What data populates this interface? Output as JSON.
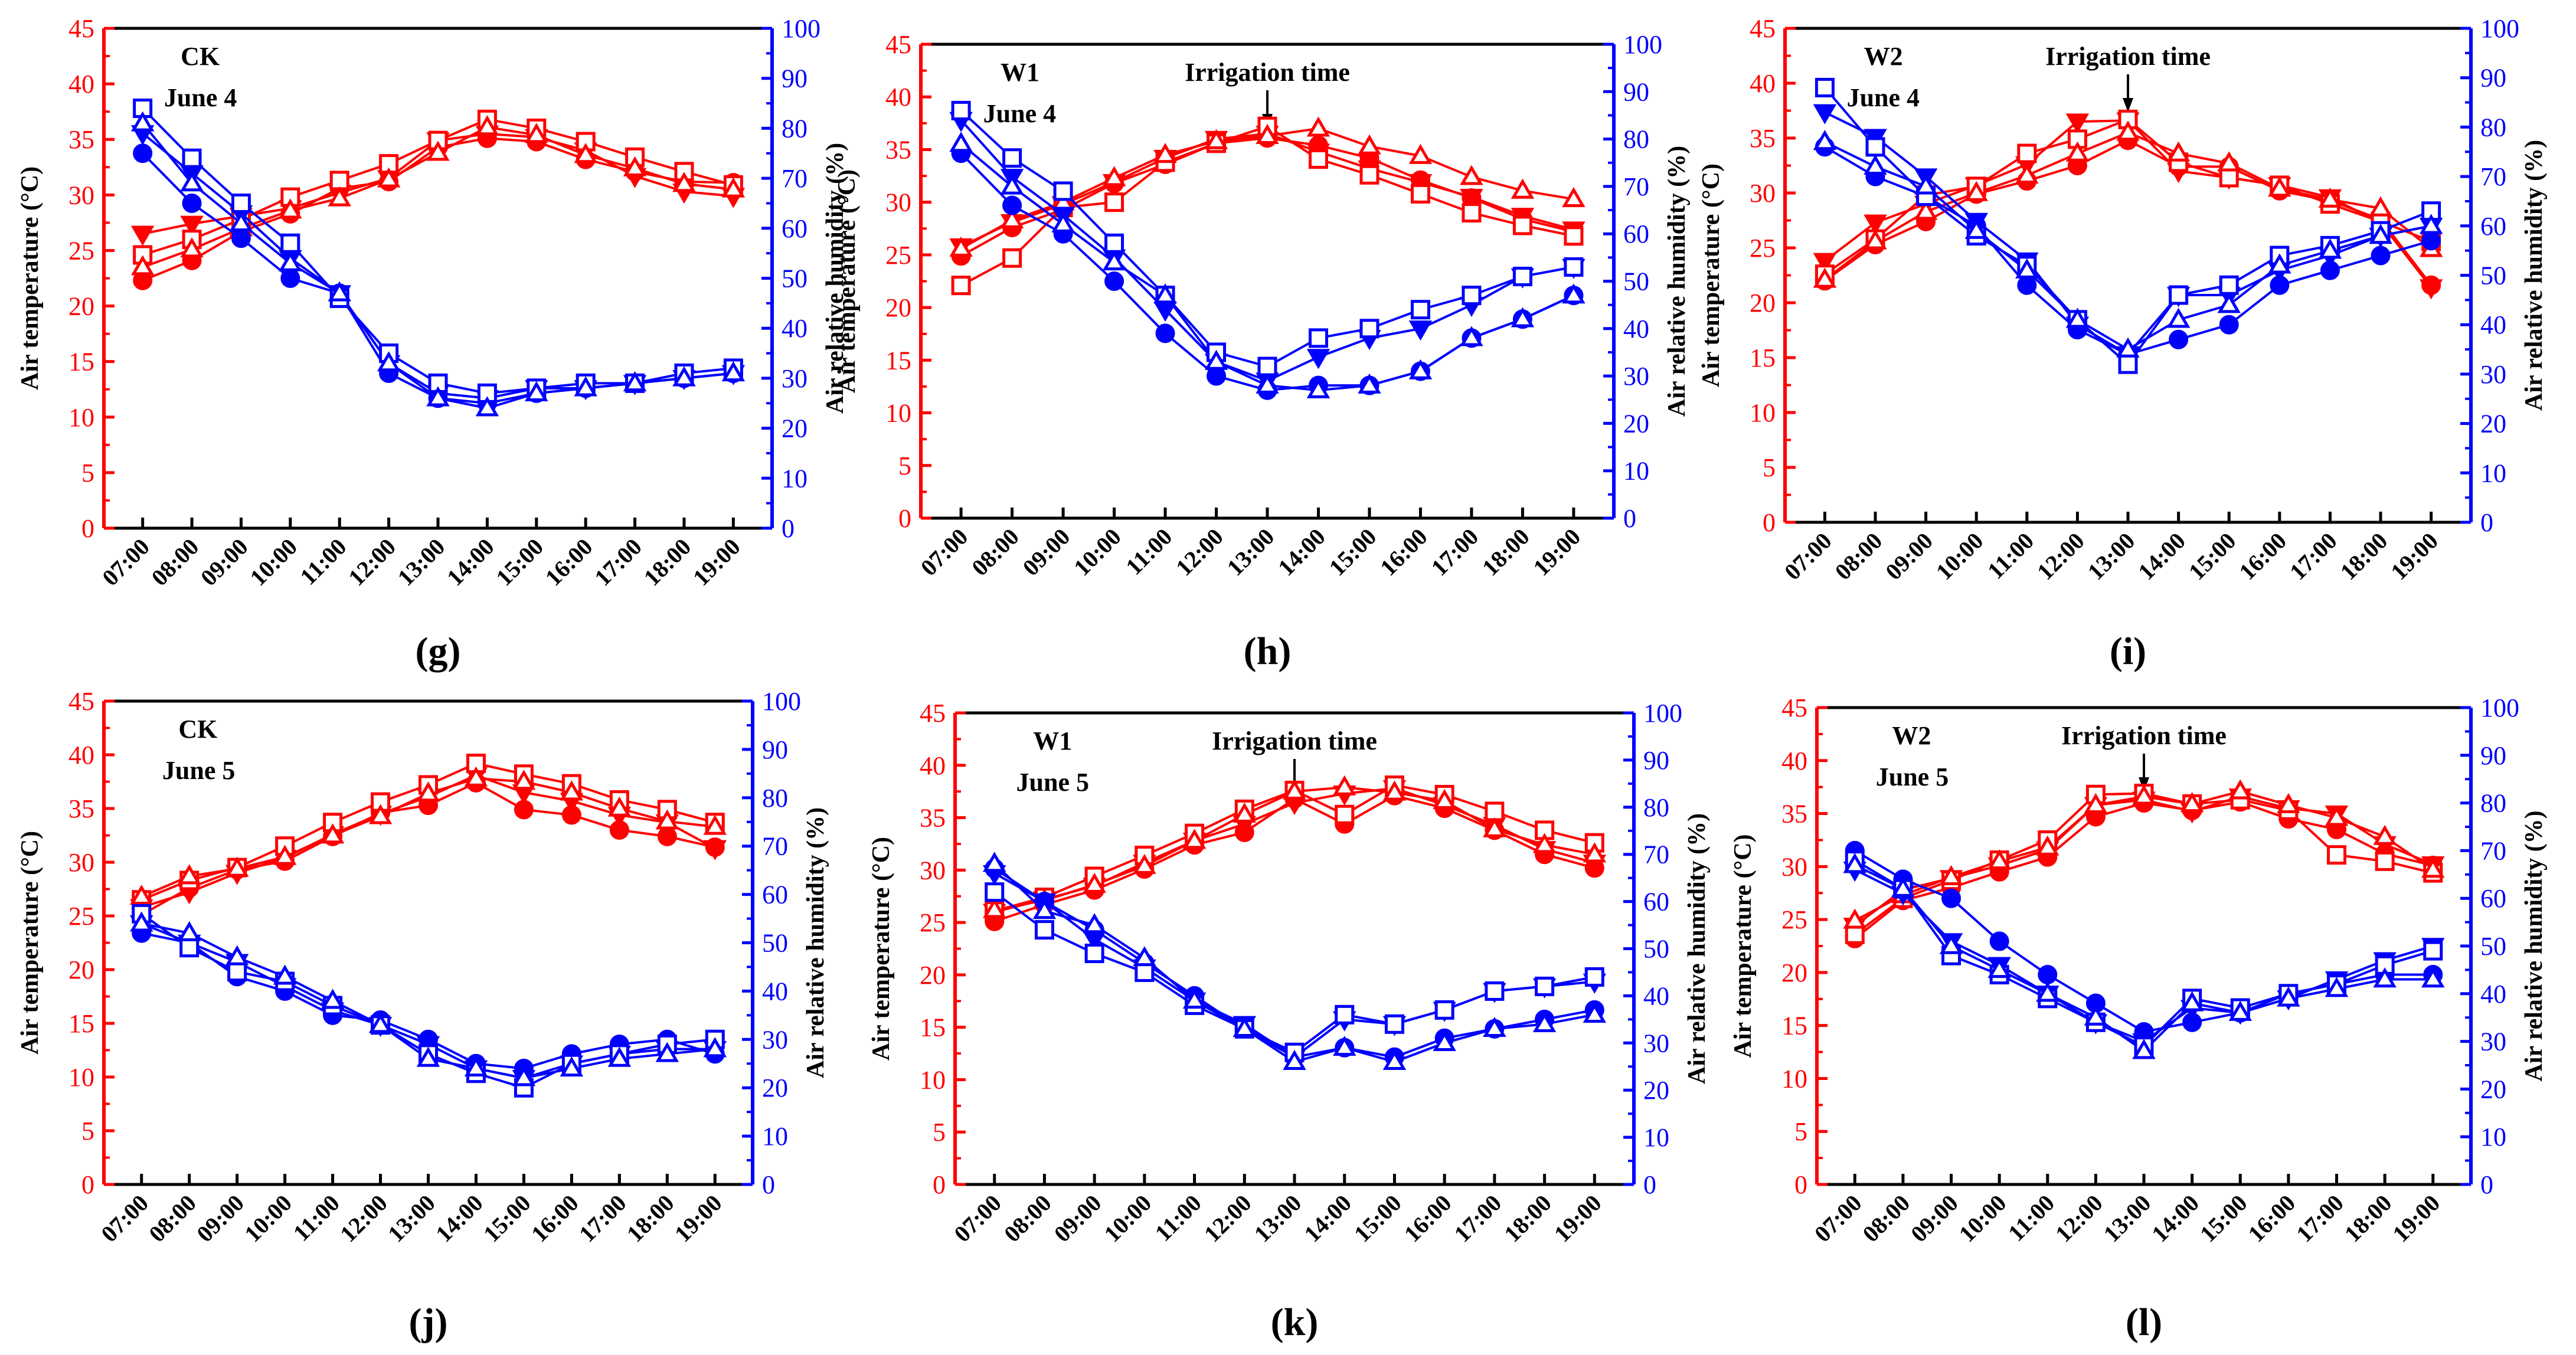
{
  "figure": {
    "colors": {
      "temperature": "#ff0000",
      "humidity": "#0000ff",
      "text": "#000000"
    }
  },
  "chart_data": [
    {
      "panel": "(g)",
      "type": "line",
      "site": "CK",
      "date": "June 4",
      "annotation": "",
      "x": [
        "07:00",
        "08:00",
        "09:00",
        "10:00",
        "11:00",
        "12:00",
        "13:00",
        "14:00",
        "15:00",
        "16:00",
        "17:00",
        "18:00",
        "19:00"
      ],
      "xlabel": "",
      "ylabel": "Air temperature (°C)",
      "y2label": "Air relative humidity (%)",
      "ylim": [
        0,
        45
      ],
      "y2lim": [
        0,
        100
      ],
      "temperature_series": [
        {
          "marker": "circle-filled",
          "values": [
            22.3,
            24.1,
            26.7,
            28.3,
            30.6,
            31.2,
            34.3,
            35.1,
            34.8,
            33.2,
            32.1,
            31.2,
            31.1
          ]
        },
        {
          "marker": "triangle-down-filled",
          "values": [
            26.5,
            27.4,
            28.1,
            28.8,
            30.2,
            31.5,
            34.9,
            35.5,
            35.2,
            34.0,
            31.7,
            30.3,
            29.9
          ]
        },
        {
          "marker": "square-open",
          "values": [
            24.6,
            26.0,
            27.8,
            29.8,
            31.3,
            32.8,
            34.9,
            36.8,
            36.0,
            34.8,
            33.4,
            32.1,
            30.9
          ]
        },
        {
          "marker": "triangle-up-open",
          "values": [
            23.5,
            25.1,
            27.0,
            28.6,
            29.7,
            31.4,
            33.8,
            36.1,
            35.4,
            33.6,
            32.4,
            31.0,
            30.5
          ]
        }
      ],
      "humidity_series": [
        {
          "marker": "circle-filled",
          "values": [
            75,
            65,
            58,
            50,
            47,
            31,
            26,
            25,
            27,
            28,
            29,
            30,
            31
          ]
        },
        {
          "marker": "triangle-down-filled",
          "values": [
            79,
            71,
            63,
            54,
            47,
            33,
            27,
            26,
            28,
            28,
            29,
            30,
            31
          ]
        },
        {
          "marker": "square-open",
          "values": [
            84,
            74,
            65,
            57,
            46,
            35,
            29,
            27,
            28,
            29,
            29,
            31,
            32
          ]
        },
        {
          "marker": "triangle-up-open",
          "values": [
            81,
            69,
            61,
            53,
            47,
            33,
            26,
            24,
            27,
            28,
            29,
            30,
            31
          ]
        }
      ]
    },
    {
      "panel": "(h)",
      "type": "line",
      "site": "W1",
      "date": "June 4",
      "annotation": "Irrigation time",
      "x": [
        "07:00",
        "08:00",
        "09:00",
        "10:00",
        "11:00",
        "12:00",
        "13:00",
        "14:00",
        "15:00",
        "16:00",
        "17:00",
        "18:00",
        "19:00"
      ],
      "xlabel": "",
      "ylabel": "Air temperature (°C)",
      "y2label": "Air relative humidity (%)",
      "ylim": [
        0,
        45
      ],
      "y2lim": [
        0,
        100
      ],
      "temperature_series": [
        {
          "marker": "circle-filled",
          "values": [
            24.9,
            27.6,
            29.3,
            31.8,
            33.6,
            35.6,
            36.1,
            35.4,
            34.2,
            32.1,
            30.4,
            28.4,
            27.2
          ]
        },
        {
          "marker": "triangle-down-filled",
          "values": [
            25.8,
            28.1,
            29.8,
            31.9,
            34.2,
            36.0,
            36.5,
            34.8,
            33.2,
            31.9,
            30.5,
            28.7,
            27.4
          ]
        },
        {
          "marker": "square-open",
          "values": [
            22.1,
            24.7,
            29.5,
            30.0,
            33.8,
            35.6,
            37.2,
            34.1,
            32.6,
            30.8,
            29.0,
            27.8,
            26.8
          ]
        },
        {
          "marker": "triangle-up-open",
          "values": [
            25.6,
            28.3,
            30.0,
            32.3,
            34.5,
            35.8,
            36.3,
            37.0,
            35.3,
            34.4,
            32.4,
            31.1,
            30.3
          ]
        }
      ],
      "humidity_series": [
        {
          "marker": "circle-filled",
          "values": [
            77,
            66,
            60,
            50,
            39,
            30,
            27,
            28,
            28,
            31,
            38,
            42,
            47
          ]
        },
        {
          "marker": "triangle-down-filled",
          "values": [
            84,
            72,
            64,
            55,
            44,
            33,
            29,
            34,
            38,
            40,
            45,
            51,
            53
          ]
        },
        {
          "marker": "square-open",
          "values": [
            86,
            76,
            69,
            58,
            47,
            35,
            32,
            38,
            40,
            44,
            47,
            51,
            53
          ]
        },
        {
          "marker": "triangle-up-open",
          "values": [
            79,
            70,
            62,
            54,
            47,
            33,
            28,
            27,
            28,
            31,
            38,
            42,
            47
          ]
        }
      ]
    },
    {
      "panel": "(i)",
      "type": "line",
      "site": "W2",
      "date": "June 4",
      "annotation": "Irrigation time",
      "x": [
        "07:00",
        "08:00",
        "09:00",
        "10:00",
        "11:00",
        "12:00",
        "13:00",
        "14:00",
        "15:00",
        "16:00",
        "17:00",
        "18:00",
        "19:00"
      ],
      "xlabel": "",
      "ylabel": "Air temperature (°C)",
      "y2label": "Air relative humidity (%)",
      "ylim": [
        0,
        45
      ],
      "y2lim": [
        0,
        100
      ],
      "temperature_series": [
        {
          "marker": "circle-filled",
          "values": [
            22.0,
            25.3,
            27.4,
            29.9,
            31.1,
            32.5,
            34.8,
            32.4,
            32.4,
            30.2,
            29.3,
            27.6,
            21.6
          ]
        },
        {
          "marker": "triangle-down-filled",
          "values": [
            23.8,
            27.3,
            29.0,
            30.7,
            32.6,
            36.5,
            36.6,
            32.0,
            31.4,
            30.7,
            29.6,
            27.3,
            21.4
          ]
        },
        {
          "marker": "square-open",
          "values": [
            22.6,
            25.8,
            29.8,
            30.6,
            33.6,
            34.9,
            36.7,
            32.8,
            31.4,
            30.7,
            29.0,
            27.4,
            25.6
          ]
        },
        {
          "marker": "triangle-up-open",
          "values": [
            22.1,
            25.6,
            28.3,
            30.0,
            31.6,
            33.6,
            35.5,
            33.6,
            32.7,
            30.4,
            29.4,
            28.6,
            24.9
          ]
        }
      ],
      "humidity_series": [
        {
          "marker": "circle-filled",
          "values": [
            76,
            70,
            66,
            60,
            48,
            39,
            34,
            37,
            40,
            48,
            51,
            54,
            57
          ]
        },
        {
          "marker": "triangle-down-filled",
          "values": [
            83,
            78,
            70,
            61,
            53,
            40,
            34,
            46,
            46,
            51,
            54,
            58,
            60
          ]
        },
        {
          "marker": "square-open",
          "values": [
            88,
            76,
            66,
            58,
            52,
            41,
            32,
            46,
            48,
            54,
            56,
            59,
            63
          ]
        },
        {
          "marker": "triangle-up-open",
          "values": [
            77,
            72,
            68,
            59,
            51,
            41,
            35,
            41,
            44,
            52,
            55,
            58,
            60
          ]
        }
      ]
    },
    {
      "panel": "(j)",
      "type": "line",
      "site": "CK",
      "date": "June 5",
      "annotation": "",
      "x": [
        "07:00",
        "08:00",
        "09:00",
        "10:00",
        "11:00",
        "12:00",
        "13:00",
        "14:00",
        "15:00",
        "16:00",
        "17:00",
        "18:00",
        "19:00"
      ],
      "xlabel": "",
      "ylabel": "Air temperature (°C)",
      "y2label": "Air relative humidity (%)",
      "ylim": [
        0,
        45
      ],
      "y2lim": [
        0,
        100
      ],
      "temperature_series": [
        {
          "marker": "circle-filled",
          "values": [
            25.1,
            27.6,
            29.3,
            30.1,
            32.4,
            34.6,
            35.3,
            37.4,
            34.9,
            34.4,
            33.0,
            32.4,
            31.4
          ]
        },
        {
          "marker": "triangle-down-filled",
          "values": [
            25.8,
            27.2,
            29.0,
            30.4,
            32.6,
            34.5,
            36.1,
            38.1,
            36.5,
            35.7,
            34.4,
            33.7,
            31.3
          ]
        },
        {
          "marker": "square-open",
          "values": [
            26.5,
            28.3,
            29.5,
            31.5,
            33.7,
            35.6,
            37.2,
            39.2,
            38.2,
            37.3,
            35.8,
            34.9,
            33.7
          ]
        },
        {
          "marker": "triangle-up-open",
          "values": [
            26.8,
            28.7,
            29.4,
            30.5,
            32.5,
            34.3,
            36.4,
            37.8,
            37.5,
            36.5,
            35.0,
            33.8,
            33.3
          ]
        }
      ],
      "humidity_series": [
        {
          "marker": "circle-filled",
          "values": [
            52,
            50,
            43,
            40,
            35,
            34,
            30,
            25,
            24,
            27,
            29,
            30,
            27
          ]
        },
        {
          "marker": "triangle-down-filled",
          "values": [
            54,
            50,
            46,
            41,
            36,
            33,
            29,
            24,
            22,
            25,
            27,
            28,
            28
          ]
        },
        {
          "marker": "square-open",
          "values": [
            56,
            49,
            44,
            42,
            37,
            33,
            27,
            23,
            20,
            25,
            27,
            29,
            30
          ]
        },
        {
          "marker": "triangle-up-open",
          "values": [
            54,
            52,
            47,
            43,
            38,
            33,
            26,
            24,
            22,
            24,
            26,
            27,
            28
          ]
        }
      ]
    },
    {
      "panel": "(k)",
      "type": "line",
      "site": "W1",
      "date": "June 5",
      "annotation": "Irrigation time",
      "x": [
        "07:00",
        "08:00",
        "09:00",
        "10:00",
        "11:00",
        "12:00",
        "13:00",
        "14:00",
        "15:00",
        "16:00",
        "17:00",
        "18:00",
        "19:00"
      ],
      "xlabel": "",
      "ylabel": "Air temperature (°C)",
      "y2label": "Air relative humidity (%)",
      "ylim": [
        0,
        45
      ],
      "y2lim": [
        0,
        100
      ],
      "temperature_series": [
        {
          "marker": "circle-filled",
          "values": [
            25.1,
            26.7,
            28.1,
            30.1,
            32.4,
            33.6,
            36.8,
            34.4,
            37.1,
            35.9,
            33.8,
            31.5,
            30.2
          ]
        },
        {
          "marker": "triangle-down-filled",
          "values": [
            26.0,
            27.2,
            28.5,
            30.7,
            32.8,
            34.4,
            36.4,
            37.3,
            37.8,
            36.2,
            34.3,
            32.0,
            30.7
          ]
        },
        {
          "marker": "square-open",
          "values": [
            26.1,
            27.4,
            29.4,
            31.4,
            33.5,
            35.8,
            37.6,
            35.3,
            38.1,
            37.2,
            35.6,
            33.8,
            32.6
          ]
        },
        {
          "marker": "triangle-up-open",
          "values": [
            26.2,
            27.1,
            28.6,
            30.4,
            32.8,
            35.3,
            37.5,
            37.9,
            37.4,
            36.6,
            33.9,
            32.4,
            31.5
          ]
        }
      ],
      "humidity_series": [
        {
          "marker": "circle-filled",
          "values": [
            67,
            60,
            54,
            47,
            40,
            33,
            27,
            29,
            27,
            31,
            33,
            35,
            37
          ]
        },
        {
          "marker": "triangle-down-filled",
          "values": [
            66,
            60,
            52,
            46,
            39,
            34,
            27,
            35,
            34,
            37,
            41,
            42,
            43
          ]
        },
        {
          "marker": "square-open",
          "values": [
            62,
            54,
            49,
            45,
            38,
            33,
            28,
            36,
            34,
            37,
            41,
            42,
            44
          ]
        },
        {
          "marker": "triangle-up-open",
          "values": [
            68,
            58,
            55,
            48,
            39,
            33,
            26,
            29,
            26,
            30,
            33,
            34,
            36
          ]
        }
      ]
    },
    {
      "panel": "(l)",
      "type": "line",
      "site": "W2",
      "date": "June 5",
      "annotation": "Irrigation time",
      "x": [
        "07:00",
        "08:00",
        "09:00",
        "10:00",
        "11:00",
        "12:00",
        "13:00",
        "14:00",
        "15:00",
        "16:00",
        "17:00",
        "18:00",
        "19:00"
      ],
      "xlabel": "",
      "ylabel": "Air temperature (°C)",
      "y2label": "Air relative humidity (%)",
      "ylim": [
        0,
        45
      ],
      "y2lim": [
        0,
        100
      ],
      "temperature_series": [
        {
          "marker": "circle-filled",
          "values": [
            23.2,
            26.8,
            28.0,
            29.5,
            30.9,
            34.7,
            36.0,
            35.3,
            36.1,
            34.5,
            33.5,
            31.2,
            30.1
          ]
        },
        {
          "marker": "triangle-down-filled",
          "values": [
            24.4,
            27.8,
            28.9,
            30.1,
            31.6,
            35.8,
            36.3,
            35.2,
            36.6,
            35.5,
            35.0,
            32.1,
            30.2
          ]
        },
        {
          "marker": "square-open",
          "values": [
            23.6,
            27.0,
            28.7,
            30.6,
            32.5,
            36.8,
            36.9,
            35.9,
            36.3,
            35.3,
            31.1,
            30.5,
            29.4
          ]
        },
        {
          "marker": "triangle-up-open",
          "values": [
            24.9,
            27.3,
            29.0,
            30.5,
            31.8,
            35.8,
            36.6,
            35.9,
            37.1,
            35.8,
            34.6,
            32.8,
            29.7
          ]
        }
      ],
      "humidity_series": [
        {
          "marker": "circle-filled",
          "values": [
            70,
            64,
            60,
            51,
            44,
            38,
            32,
            34,
            36,
            40,
            42,
            44,
            44
          ]
        },
        {
          "marker": "triangle-down-filled",
          "values": [
            66,
            61,
            51,
            46,
            40,
            34,
            30,
            37,
            36,
            39,
            43,
            47,
            50
          ]
        },
        {
          "marker": "square-open",
          "values": [
            68,
            62,
            48,
            44,
            39,
            34,
            29,
            39,
            37,
            40,
            42,
            46,
            49
          ]
        },
        {
          "marker": "triangle-up-open",
          "values": [
            67,
            62,
            50,
            45,
            40,
            35,
            28,
            38,
            36,
            39,
            41,
            43,
            43
          ]
        }
      ]
    }
  ]
}
